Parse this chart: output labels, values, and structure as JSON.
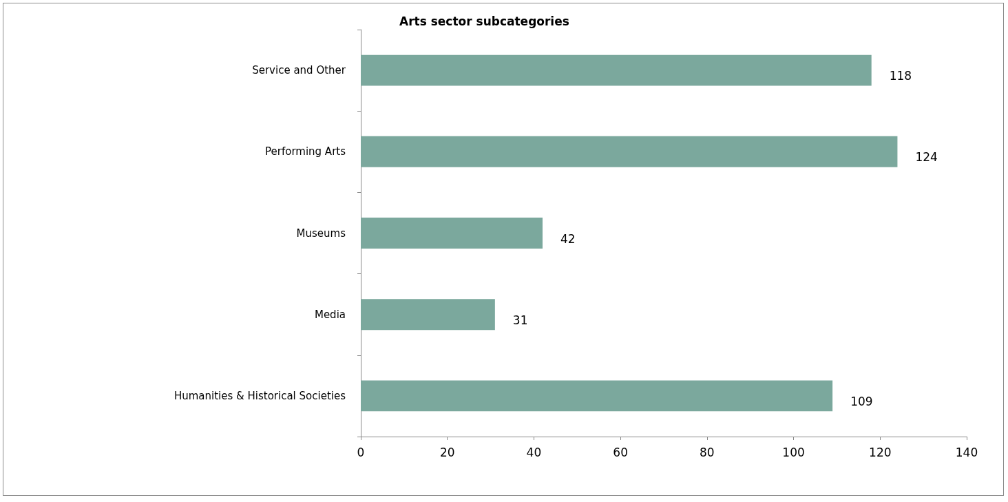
{
  "chart_data": {
    "type": "bar",
    "title": "Arts sector subcategories",
    "orientation": "horizontal",
    "categories": [
      "Service and Other",
      "Performing Arts",
      "Museums",
      "Media",
      "Humanities & Historical Societies"
    ],
    "values": [
      118,
      124,
      42,
      31,
      109
    ],
    "color": "#7ba89d",
    "xlim": [
      0,
      140
    ],
    "xticks": [
      0,
      20,
      40,
      60,
      80,
      100,
      120,
      140
    ],
    "data_labels": true,
    "grid": false
  }
}
